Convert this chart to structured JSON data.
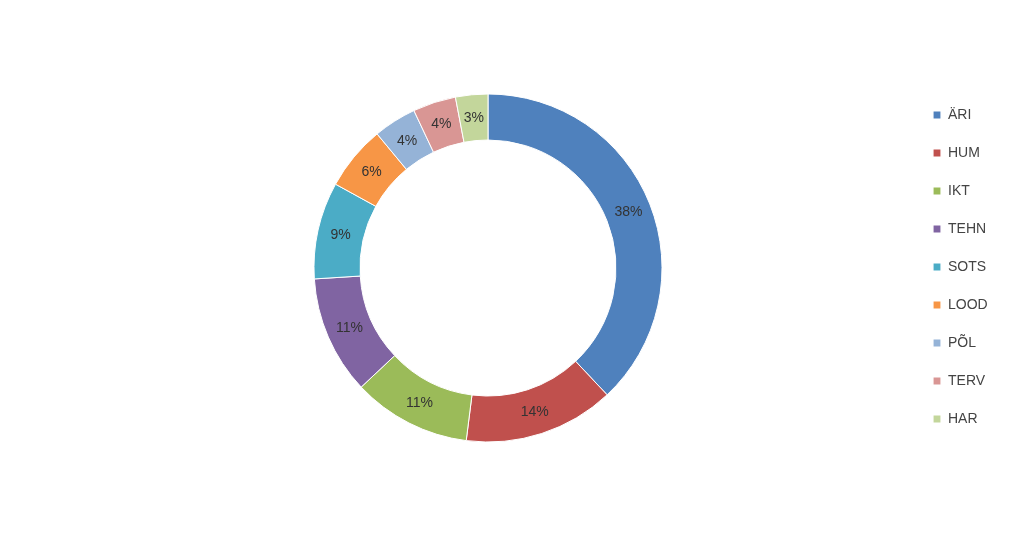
{
  "chart_data": {
    "type": "donut",
    "categories": [
      "ÄRI",
      "HUM",
      "IKT",
      "TEHN",
      "SOTS",
      "LOOD",
      "PÕL",
      "TERV",
      "HAR"
    ],
    "values": [
      38,
      14,
      11,
      11,
      9,
      6,
      4,
      4,
      3
    ],
    "colors": [
      "#4f81bd",
      "#c0504d",
      "#9bbb59",
      "#8064a2",
      "#4bacc6",
      "#f79646",
      "#95b3d7",
      "#d99694",
      "#c3d69b"
    ],
    "value_labels": [
      "38%",
      "14%",
      "11%",
      "11%",
      "9%",
      "6%",
      "4%",
      "4%",
      "3%"
    ],
    "legend": "right"
  }
}
